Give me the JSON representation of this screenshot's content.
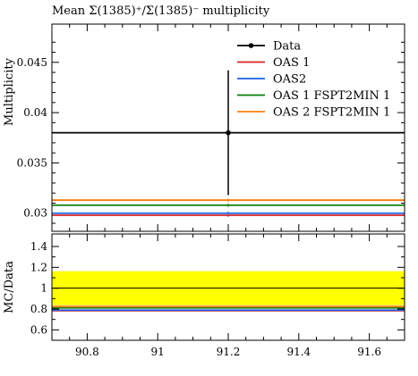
{
  "chart_data": [
    {
      "type": "line",
      "title": "Mean Σ(1385)⁺/Σ(1385)⁻ multiplicity",
      "xlabel": "",
      "ylabel": "Multiplicity",
      "xlim": [
        90.7,
        91.7
      ],
      "ylim": [
        0.0282,
        0.0488
      ],
      "yticks": [
        0.03,
        0.035,
        0.04,
        0.045
      ],
      "ytick_labels": [
        "0.03",
        "0.035",
        "0.04",
        "0.045"
      ],
      "legend_position": "top-right",
      "data": {
        "name": "Data",
        "x": 91.2,
        "y": 0.038,
        "yerr_low": 0.0062,
        "yerr_high": 0.0062,
        "color": "#000000"
      },
      "series": [
        {
          "name": "OAS 1",
          "y": 0.0298,
          "color": "#d62728"
        },
        {
          "name": "OAS2",
          "y": 0.03,
          "color": "#1f5fe0"
        },
        {
          "name": "OAS 1 FSPT2MIN 1",
          "y": 0.0308,
          "color": "#0a7d0a"
        },
        {
          "name": "OAS 2 FSPT2MIN 1",
          "y": 0.0313,
          "color": "#ff7f0e"
        }
      ]
    },
    {
      "type": "line",
      "title": "",
      "xlabel": "",
      "ylabel": "MC/Data",
      "xlim": [
        90.7,
        91.7
      ],
      "ylim": [
        0.5,
        1.52
      ],
      "xticks": [
        90.8,
        91,
        91.2,
        91.4,
        91.6
      ],
      "xtick_labels": [
        "90.8",
        "91",
        "91.2",
        "91.4",
        "91.6"
      ],
      "yticks": [
        0.6,
        0.8,
        1,
        1.2,
        1.4
      ],
      "ytick_labels": [
        "0.6",
        "0.8",
        "1",
        "1.2",
        "1.4"
      ],
      "band": {
        "low": 0.837,
        "high": 1.163,
        "color": "#ffff00"
      },
      "reference": 1.0,
      "series": [
        {
          "name": "OAS 1",
          "y": 0.784,
          "color": "#d62728"
        },
        {
          "name": "OAS2",
          "y": 0.789,
          "color": "#1f5fe0"
        },
        {
          "name": "OAS 1 FSPT2MIN 1",
          "y": 0.811,
          "color": "#0a7d0a"
        },
        {
          "name": "OAS 2 FSPT2MIN 1",
          "y": 0.824,
          "color": "#ff7f0e"
        }
      ]
    }
  ]
}
